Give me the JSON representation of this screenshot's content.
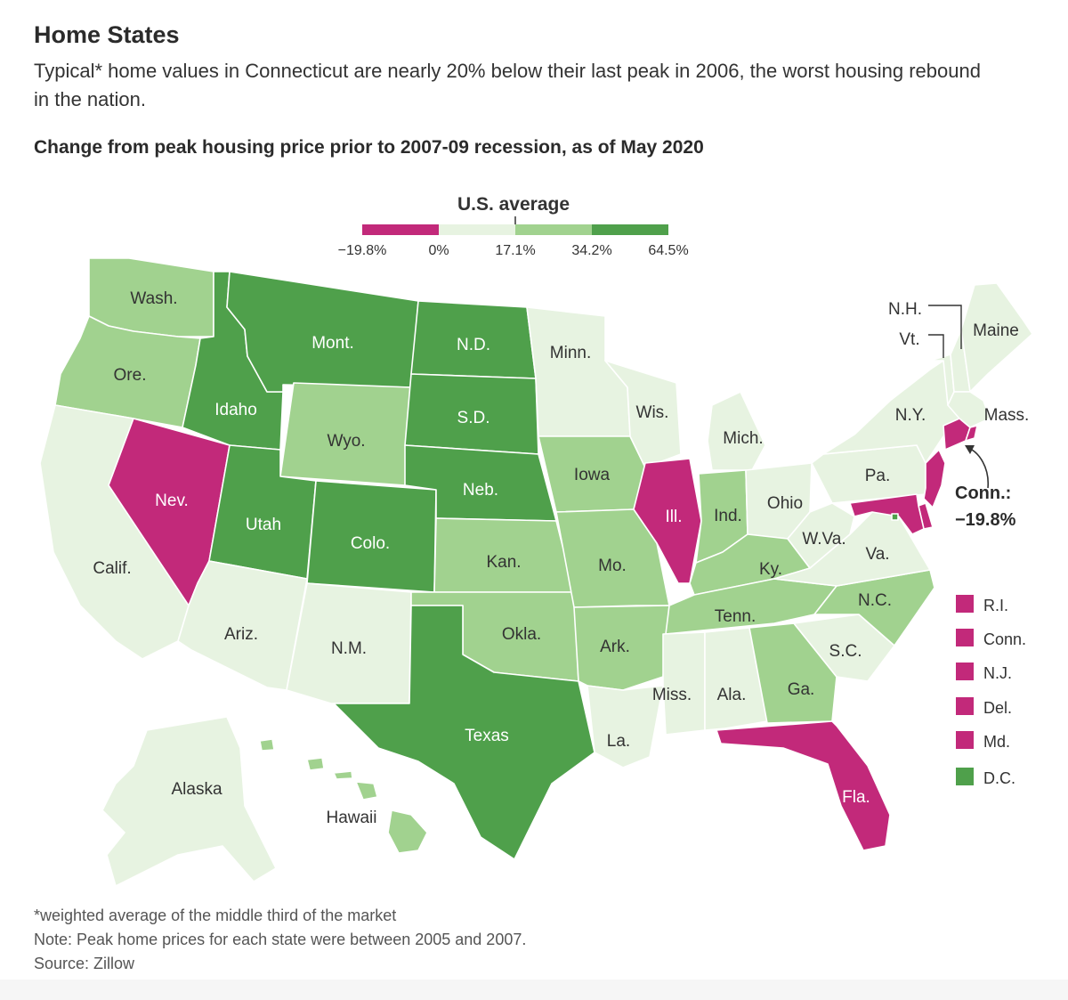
{
  "title": "Home States",
  "subtitle": "Typical* home values in Connecticut are nearly 20% below their last peak in 2006, the worst housing rebound in the nation.",
  "chart_title": "Change from peak housing price prior to 2007-09 recession, as of May 2020",
  "colors": {
    "negative": "#c2297a",
    "low": "#e7f3e1",
    "mid": "#a1d28f",
    "high": "#4fa04b"
  },
  "legend": {
    "average_label": "U.S. average",
    "average_value": 17.1,
    "bins": [
      {
        "from": -19.8,
        "to": 0,
        "color": "negative"
      },
      {
        "from": 0,
        "to": 17.1,
        "color": "low"
      },
      {
        "from": 17.1,
        "to": 34.2,
        "color": "mid"
      },
      {
        "from": 34.2,
        "to": 64.5,
        "color": "high"
      }
    ],
    "ticks": [
      "−19.8%",
      "0%",
      "17.1%",
      "34.2%",
      "64.5%"
    ]
  },
  "chart_data": {
    "type": "choropleth",
    "title": "Change from peak housing price prior to 2007-09 recession, as of May 2020",
    "unit": "%",
    "scale_range": [
      -19.8,
      64.5
    ],
    "us_average": 17.1,
    "categories": {
      "negative": "below 0%",
      "low": "0% to 17.1%",
      "mid": "17.1% to 34.2%",
      "high": "34.2% to 64.5%"
    },
    "states": {
      "Wash.": "mid",
      "Ore.": "mid",
      "Calif.": "low",
      "Nev.": "negative",
      "Idaho": "high",
      "Mont.": "high",
      "Wyo.": "mid",
      "Utah": "high",
      "Colo.": "high",
      "Ariz.": "low",
      "N.M.": "low",
      "N.D.": "high",
      "S.D.": "high",
      "Neb.": "high",
      "Kan.": "mid",
      "Okla.": "mid",
      "Texas": "high",
      "Minn.": "low",
      "Iowa": "mid",
      "Mo.": "mid",
      "Ark.": "mid",
      "La.": "low",
      "Wis.": "low",
      "Ill.": "negative",
      "Mich.": "low",
      "Ind.": "mid",
      "Ohio": "low",
      "Ky.": "mid",
      "Tenn.": "mid",
      "Miss.": "low",
      "Ala.": "low",
      "Ga.": "mid",
      "Fla.": "negative",
      "S.C.": "low",
      "N.C.": "mid",
      "Va.": "low",
      "W.Va.": "low",
      "Pa.": "low",
      "N.Y.": "low",
      "Vt.": "low",
      "N.H.": "low",
      "Maine": "low",
      "Mass.": "low",
      "Conn.": "negative",
      "R.I.": "negative",
      "N.J.": "negative",
      "Del.": "negative",
      "Md.": "negative",
      "D.C.": "high",
      "Alaska": "low",
      "Hawaii": "mid"
    },
    "annotation": {
      "label": "Conn.:",
      "value": "−19.8%"
    }
  },
  "state_labels": {
    "wash": "Wash.",
    "ore": "Ore.",
    "calif": "Calif.",
    "nev": "Nev.",
    "idaho": "Idaho",
    "mont": "Mont.",
    "wyo": "Wyo.",
    "utah": "Utah",
    "colo": "Colo.",
    "ariz": "Ariz.",
    "nm": "N.M.",
    "nd": "N.D.",
    "sd": "S.D.",
    "neb": "Neb.",
    "kan": "Kan.",
    "okla": "Okla.",
    "texas": "Texas",
    "minn": "Minn.",
    "iowa": "Iowa",
    "mo": "Mo.",
    "ark": "Ark.",
    "la": "La.",
    "wis": "Wis.",
    "ill": "Ill.",
    "mich": "Mich.",
    "ind": "Ind.",
    "ohio": "Ohio",
    "ky": "Ky.",
    "tenn": "Tenn.",
    "miss": "Miss.",
    "ala": "Ala.",
    "ga": "Ga.",
    "fla": "Fla.",
    "sc": "S.C.",
    "nc": "N.C.",
    "va": "Va.",
    "wva": "W.Va.",
    "pa": "Pa.",
    "ny": "N.Y.",
    "vt": "Vt.",
    "nh": "N.H.",
    "maine": "Maine",
    "mass": "Mass.",
    "alaska": "Alaska",
    "hawaii": "Hawaii"
  },
  "side_legend": [
    {
      "label": "R.I.",
      "color": "negative"
    },
    {
      "label": "Conn.",
      "color": "negative"
    },
    {
      "label": "N.J.",
      "color": "negative"
    },
    {
      "label": "Del.",
      "color": "negative"
    },
    {
      "label": "Md.",
      "color": "negative"
    },
    {
      "label": "D.C.",
      "color": "high"
    }
  ],
  "footer": {
    "footnote": "*weighted average of the middle third of the market",
    "note": "Note: Peak home prices for each state were between 2005 and 2007.",
    "source": "Source: Zillow"
  }
}
